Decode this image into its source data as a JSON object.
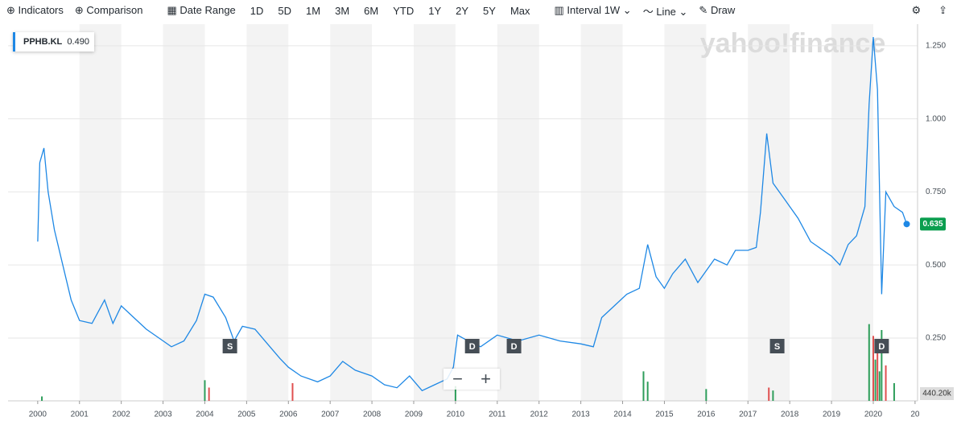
{
  "toolbar": {
    "indicators": "Indicators",
    "comparison": "Comparison",
    "date_range": "Date Range",
    "ranges": [
      "1D",
      "5D",
      "1M",
      "3M",
      "6M",
      "YTD",
      "1Y",
      "2Y",
      "5Y",
      "Max"
    ],
    "interval": "Interval",
    "interval_value": "1W",
    "chart_style": "Line",
    "draw": "Draw"
  },
  "chart_data": {
    "type": "line",
    "watermark": "yahoo!finance",
    "legend_symbol": "PPHB.KL",
    "legend_value": "0.490",
    "current_value_label": "0.635",
    "x": [
      2000.0,
      2000.05,
      2000.15,
      2000.25,
      2000.4,
      2000.6,
      2000.8,
      2001.0,
      2001.3,
      2001.6,
      2001.8,
      2002.0,
      2002.3,
      2002.6,
      2002.9,
      2003.2,
      2003.5,
      2003.8,
      2004.0,
      2004.2,
      2004.5,
      2004.7,
      2004.9,
      2005.2,
      2005.5,
      2005.8,
      2006.0,
      2006.3,
      2006.7,
      2007.0,
      2007.3,
      2007.6,
      2008.0,
      2008.3,
      2008.6,
      2008.9,
      2009.2,
      2009.5,
      2009.8,
      2009.95,
      2010.05,
      2010.3,
      2010.6,
      2011.0,
      2011.5,
      2012.0,
      2012.5,
      2013.0,
      2013.3,
      2013.5,
      2013.8,
      2014.1,
      2014.4,
      2014.6,
      2014.8,
      2015.0,
      2015.2,
      2015.5,
      2015.8,
      2016.0,
      2016.2,
      2016.5,
      2016.7,
      2017.0,
      2017.2,
      2017.3,
      2017.45,
      2017.6,
      2017.9,
      2018.2,
      2018.5,
      2018.8,
      2019.0,
      2019.2,
      2019.4,
      2019.6,
      2019.8,
      2019.9,
      2020.0,
      2020.1,
      2020.2,
      2020.3,
      2020.5,
      2020.7,
      2020.8
    ],
    "series": [
      {
        "name": "PPHB.KL",
        "color": "#1e88e5",
        "values": [
          0.58,
          0.85,
          0.9,
          0.75,
          0.62,
          0.5,
          0.38,
          0.31,
          0.3,
          0.38,
          0.3,
          0.36,
          0.32,
          0.28,
          0.25,
          0.22,
          0.24,
          0.31,
          0.4,
          0.39,
          0.32,
          0.24,
          0.29,
          0.28,
          0.23,
          0.18,
          0.15,
          0.12,
          0.1,
          0.12,
          0.17,
          0.14,
          0.12,
          0.09,
          0.08,
          0.12,
          0.07,
          0.09,
          0.11,
          0.15,
          0.26,
          0.24,
          0.22,
          0.26,
          0.24,
          0.26,
          0.24,
          0.23,
          0.22,
          0.32,
          0.36,
          0.4,
          0.42,
          0.57,
          0.46,
          0.42,
          0.47,
          0.52,
          0.44,
          0.48,
          0.52,
          0.5,
          0.55,
          0.55,
          0.56,
          0.68,
          0.95,
          0.78,
          0.72,
          0.66,
          0.58,
          0.55,
          0.53,
          0.5,
          0.57,
          0.6,
          0.7,
          1.05,
          1.28,
          1.1,
          0.4,
          0.75,
          0.7,
          0.68,
          0.64
        ]
      }
    ],
    "volume": {
      "label": "440.20k",
      "ylim": [
        0,
        3000000
      ],
      "x": [
        2000.1,
        2004.0,
        2004.1,
        2006.1,
        2010.0,
        2014.5,
        2014.6,
        2016.0,
        2017.5,
        2017.6,
        2019.9,
        2020.0,
        2020.05,
        2020.1,
        2020.15,
        2020.2,
        2020.3,
        2020.5
      ],
      "values": [
        150000,
        700000,
        450000,
        600000,
        500000,
        1000000,
        650000,
        400000,
        450000,
        350000,
        2600000,
        2200000,
        1400000,
        1900000,
        1000000,
        2400000,
        1200000,
        600000
      ],
      "colors": [
        "#2e9e5b",
        "#2e9e5b",
        "#e05050",
        "#e05050",
        "#2e9e5b",
        "#2e9e5b",
        "#2e9e5b",
        "#2e9e5b",
        "#e05050",
        "#2e9e5b",
        "#2e9e5b",
        "#e05050",
        "#2e9e5b",
        "#e05050",
        "#2e9e5b",
        "#2e9e5b",
        "#e05050",
        "#2e9e5b"
      ]
    },
    "events": [
      {
        "label": "S",
        "x": 2004.6
      },
      {
        "label": "D",
        "x": 2010.4
      },
      {
        "label": "D",
        "x": 2011.4
      },
      {
        "label": "S",
        "x": 2017.7
      },
      {
        "label": "D",
        "x": 2020.2
      }
    ],
    "xlim": [
      1999.29,
      2021.06
    ],
    "ylim": [
      0.035,
      1.324
    ],
    "xticks": [
      2000,
      2001,
      2002,
      2003,
      2004,
      2005,
      2006,
      2007,
      2008,
      2009,
      2010,
      2011,
      2012,
      2013,
      2014,
      2015,
      2016,
      2017,
      2018,
      2019,
      2020,
      {
        "value": 2021,
        "label": "20"
      }
    ],
    "yticks": [
      {
        "value": 0.25,
        "label": "0.250"
      },
      {
        "value": 0.5,
        "label": "0.500"
      },
      {
        "value": 0.75,
        "label": "0.750"
      },
      {
        "value": 1,
        "label": "1.000"
      },
      {
        "value": 1.25,
        "label": "1.250"
      }
    ],
    "grid": true
  }
}
